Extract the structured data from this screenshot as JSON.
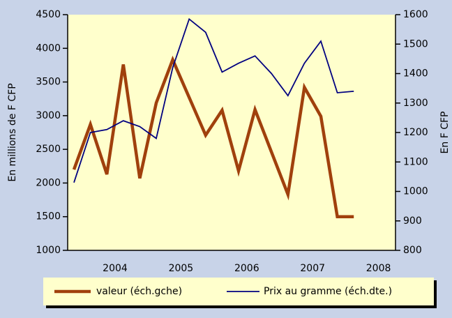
{
  "chart_data": {
    "type": "line",
    "y_label": "En millions de F CFP",
    "y2_label": "En F CFP",
    "categories": [
      null,
      null,
      null,
      null,
      null,
      null,
      null,
      null,
      null,
      null,
      null,
      null,
      null,
      null,
      null,
      null,
      null,
      null
    ],
    "year_labels": [
      "2004",
      "2005",
      "2006",
      "2007",
      "2008"
    ],
    "series": [
      {
        "name": "valeur (éch.gche)",
        "color": "#a0400c",
        "axis": "y",
        "values": [
          2200,
          2870,
          2130,
          3760,
          2070,
          3190,
          3830,
          3270,
          2710,
          3080,
          2180,
          3090,
          2460,
          1830,
          3420,
          2990,
          1500,
          1500
        ]
      },
      {
        "name": "Prix au gramme (éch.dte.)",
        "color": "#000080",
        "axis": "y2",
        "values": [
          1030,
          1200,
          1210,
          1240,
          1220,
          1180,
          1420,
          1585,
          1540,
          1405,
          1435,
          1460,
          1400,
          1325,
          1435,
          1510,
          1335,
          1340
        ]
      }
    ],
    "ylim": [
      1000,
      4500
    ],
    "yticks": [
      1000,
      1500,
      2000,
      2500,
      3000,
      3500,
      4000,
      4500
    ],
    "y2lim": [
      800,
      1600
    ],
    "y2ticks": [
      800,
      900,
      1000,
      1100,
      1200,
      1300,
      1400,
      1500,
      1600
    ],
    "grid": false
  }
}
